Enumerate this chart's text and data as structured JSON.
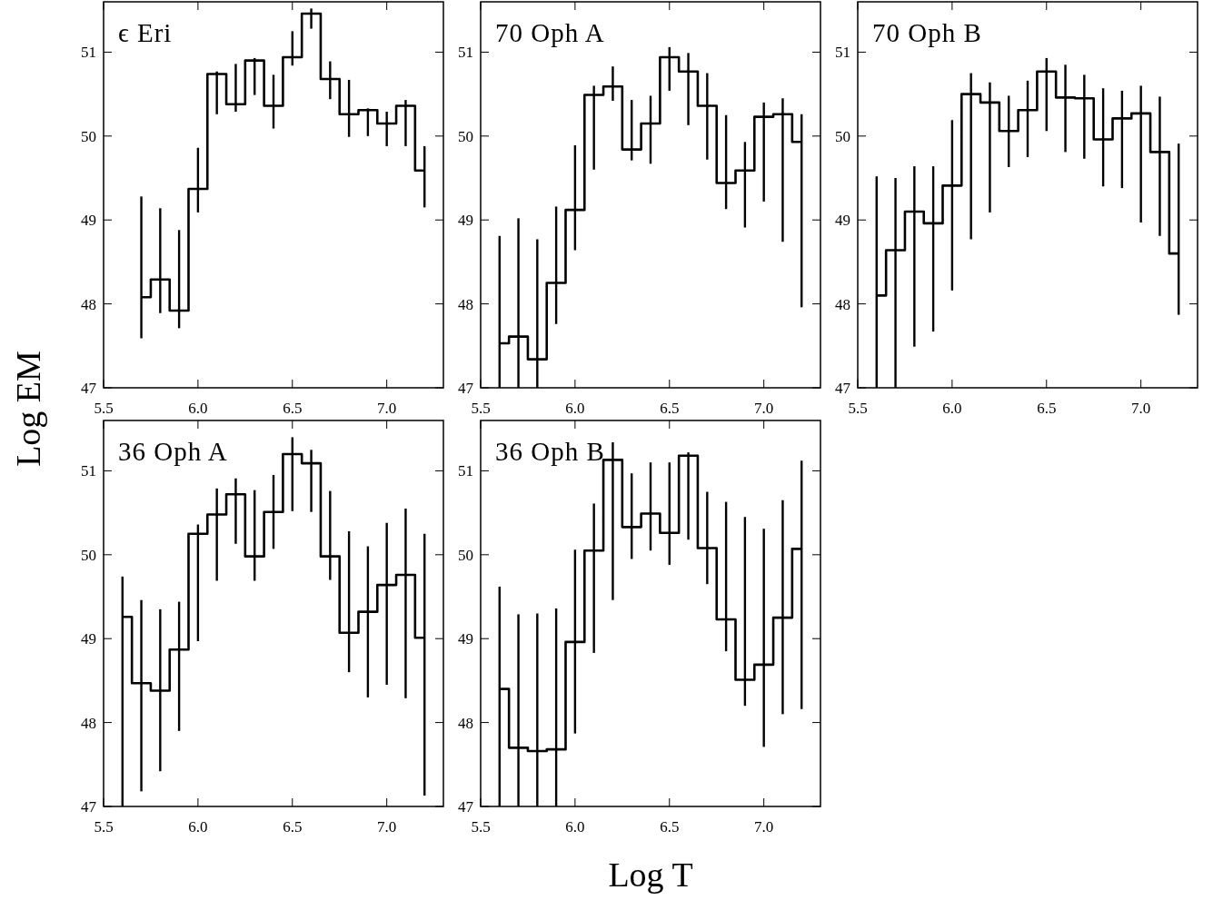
{
  "chart_data": [
    {
      "type": "step",
      "title": "ϵ Eri",
      "ylabel": "Log EM",
      "x": [
        5.7,
        5.8,
        5.9,
        6.0,
        6.1,
        6.2,
        6.3,
        6.4,
        6.5,
        6.6,
        6.7,
        6.8,
        6.9,
        7.0,
        7.1,
        7.2
      ],
      "series": [
        {
          "color": "#000000",
          "values": [
            48.08,
            48.29,
            47.92,
            49.37,
            50.74,
            50.38,
            50.9,
            50.36,
            50.94,
            51.46,
            50.68,
            50.26,
            50.31,
            50.15,
            50.36,
            49.59
          ],
          "errors": [
            [
              47.59,
              49.28
            ],
            [
              47.89,
              49.14
            ],
            [
              47.71,
              48.88
            ],
            [
              49.09,
              49.86
            ],
            [
              50.26,
              50.77
            ],
            [
              50.29,
              50.86
            ],
            [
              50.49,
              50.93
            ],
            [
              50.09,
              50.73
            ],
            [
              50.84,
              51.25
            ],
            [
              51.28,
              51.52
            ],
            [
              50.44,
              50.89
            ],
            [
              49.99,
              50.67
            ],
            [
              50.0,
              50.33
            ],
            [
              49.88,
              50.29
            ],
            [
              49.88,
              50.43
            ],
            [
              49.15,
              49.88
            ]
          ]
        }
      ],
      "xlim": [
        5.5,
        7.3
      ],
      "xticks": [
        {
          "value": 5.5,
          "label": "5.5"
        },
        {
          "value": 6.0,
          "label": "6.0"
        },
        {
          "value": 6.5,
          "label": "6.5"
        },
        {
          "value": 7.0,
          "label": "7.0"
        }
      ],
      "ylim": [
        47,
        51.6
      ],
      "yticks": [
        47,
        48,
        49,
        50,
        51
      ],
      "grid": false,
      "line_style": "solid",
      "marker": "none"
    },
    {
      "type": "step",
      "title": "70 Oph A",
      "x": [
        5.6,
        5.7,
        5.8,
        5.9,
        6.0,
        6.1,
        6.2,
        6.3,
        6.4,
        6.5,
        6.6,
        6.7,
        6.8,
        6.9,
        7.0,
        7.1,
        7.2
      ],
      "series": [
        {
          "color": "#000000",
          "values": [
            47.53,
            47.61,
            47.34,
            48.25,
            49.12,
            50.49,
            50.59,
            49.84,
            50.15,
            50.94,
            50.77,
            50.36,
            49.44,
            49.59,
            50.23,
            50.26,
            49.93
          ],
          "errors": [
            [
              47,
              48.81
            ],
            [
              47,
              49.02
            ],
            [
              47,
              48.77
            ],
            [
              47.76,
              49.16
            ],
            [
              48.64,
              49.89
            ],
            [
              49.6,
              50.6
            ],
            [
              50.42,
              50.83
            ],
            [
              49.71,
              50.43
            ],
            [
              49.67,
              50.48
            ],
            [
              50.54,
              51.06
            ],
            [
              50.13,
              50.99
            ],
            [
              49.72,
              50.75
            ],
            [
              49.13,
              50.25
            ],
            [
              48.91,
              49.93
            ],
            [
              49.22,
              50.4
            ],
            [
              48.74,
              50.45
            ],
            [
              47.96,
              50.26
            ]
          ]
        }
      ],
      "xlim": [
        5.5,
        7.3
      ],
      "xticks": [
        {
          "value": 5.5,
          "label": "5.5"
        },
        {
          "value": 6.0,
          "label": "6.0"
        },
        {
          "value": 6.5,
          "label": "6.5"
        },
        {
          "value": 7.0,
          "label": "7.0"
        }
      ],
      "ylim": [
        47,
        51.6
      ],
      "yticks": [
        47,
        48,
        49,
        50,
        51
      ],
      "grid": false,
      "line_style": "solid",
      "marker": "none"
    },
    {
      "type": "step",
      "title": "70 Oph B",
      "x": [
        5.6,
        5.7,
        5.8,
        5.9,
        6.0,
        6.1,
        6.2,
        6.3,
        6.4,
        6.5,
        6.6,
        6.7,
        6.8,
        6.9,
        7.0,
        7.1,
        7.2
      ],
      "series": [
        {
          "color": "#000000",
          "values": [
            48.1,
            48.64,
            49.1,
            48.96,
            49.41,
            50.5,
            50.4,
            50.06,
            50.31,
            50.77,
            50.46,
            50.45,
            49.96,
            50.21,
            50.27,
            49.81,
            48.6
          ],
          "errors": [
            [
              47,
              49.52
            ],
            [
              47,
              49.5
            ],
            [
              47.49,
              49.64
            ],
            [
              47.67,
              49.64
            ],
            [
              48.16,
              50.19
            ],
            [
              48.77,
              50.75
            ],
            [
              49.09,
              50.64
            ],
            [
              49.63,
              50.48
            ],
            [
              49.75,
              50.66
            ],
            [
              50.06,
              50.93
            ],
            [
              49.81,
              50.85
            ],
            [
              49.73,
              50.73
            ],
            [
              49.4,
              50.57
            ],
            [
              49.38,
              50.54
            ],
            [
              48.97,
              50.6
            ],
            [
              48.81,
              50.47
            ],
            [
              47.87,
              49.91
            ]
          ]
        }
      ],
      "xlim": [
        5.5,
        7.3
      ],
      "xticks": [
        {
          "value": 5.5,
          "label": "5.5"
        },
        {
          "value": 6.0,
          "label": "6.0"
        },
        {
          "value": 6.5,
          "label": "6.5"
        },
        {
          "value": 7.0,
          "label": "7.0"
        }
      ],
      "ylim": [
        47,
        51.6
      ],
      "yticks": [
        47,
        48,
        49,
        50,
        51
      ],
      "grid": false,
      "line_style": "solid",
      "marker": "none"
    },
    {
      "type": "step",
      "title": "36 Oph A",
      "xlabel": "Log T",
      "x": [
        5.6,
        5.7,
        5.8,
        5.9,
        6.0,
        6.1,
        6.2,
        6.3,
        6.4,
        6.5,
        6.6,
        6.7,
        6.8,
        6.9,
        7.0,
        7.1,
        7.2
      ],
      "series": [
        {
          "color": "#000000",
          "values": [
            49.26,
            48.47,
            48.38,
            48.87,
            50.25,
            50.48,
            50.72,
            49.98,
            50.51,
            51.2,
            51.09,
            49.98,
            49.07,
            49.32,
            49.64,
            49.76,
            49.01
          ],
          "errors": [
            [
              47,
              49.74
            ],
            [
              47.18,
              49.46
            ],
            [
              47.42,
              49.35
            ],
            [
              47.9,
              49.44
            ],
            [
              48.97,
              50.36
            ],
            [
              49.69,
              50.79
            ],
            [
              50.13,
              50.91
            ],
            [
              49.69,
              50.77
            ],
            [
              50.07,
              50.95
            ],
            [
              50.52,
              51.4
            ],
            [
              50.51,
              51.25
            ],
            [
              49.7,
              50.76
            ],
            [
              48.6,
              50.28
            ],
            [
              48.3,
              50.1
            ],
            [
              48.45,
              50.38
            ],
            [
              48.29,
              50.55
            ],
            [
              47.13,
              50.25
            ]
          ]
        }
      ],
      "xlim": [
        5.5,
        7.3
      ],
      "xticks": [
        {
          "value": 5.5,
          "label": "5.5"
        },
        {
          "value": 6.0,
          "label": "6.0"
        },
        {
          "value": 6.5,
          "label": "6.5"
        },
        {
          "value": 7.0,
          "label": "7.0"
        }
      ],
      "ylim": [
        47,
        51.6
      ],
      "yticks": [
        47,
        48,
        49,
        50,
        51
      ],
      "grid": false,
      "line_style": "solid",
      "marker": "none"
    },
    {
      "type": "step",
      "title": "36 Oph B",
      "x": [
        5.6,
        5.7,
        5.8,
        5.9,
        6.0,
        6.1,
        6.2,
        6.3,
        6.4,
        6.5,
        6.6,
        6.7,
        6.8,
        6.9,
        7.0,
        7.1,
        7.2
      ],
      "series": [
        {
          "color": "#000000",
          "values": [
            48.4,
            47.7,
            47.66,
            47.68,
            48.96,
            50.05,
            51.13,
            50.33,
            50.49,
            50.26,
            51.18,
            50.08,
            49.23,
            48.51,
            48.69,
            49.25,
            50.07
          ],
          "errors": [
            [
              47,
              49.62
            ],
            [
              47,
              49.29
            ],
            [
              47,
              49.3
            ],
            [
              47,
              49.36
            ],
            [
              47.87,
              50.06
            ],
            [
              48.83,
              50.61
            ],
            [
              49.46,
              51.34
            ],
            [
              49.95,
              50.97
            ],
            [
              50.05,
              51.1
            ],
            [
              49.88,
              51.1
            ],
            [
              50.18,
              51.22
            ],
            [
              49.65,
              50.75
            ],
            [
              48.85,
              50.63
            ],
            [
              48.2,
              50.45
            ],
            [
              47.71,
              50.31
            ],
            [
              48.1,
              50.65
            ],
            [
              48.16,
              51.12
            ]
          ]
        }
      ],
      "xlim": [
        5.5,
        7.3
      ],
      "xticks": [
        {
          "value": 5.5,
          "label": "5.5"
        },
        {
          "value": 6.0,
          "label": "6.0"
        },
        {
          "value": 6.5,
          "label": "6.5"
        },
        {
          "value": 7.0,
          "label": "7.0"
        }
      ],
      "ylim": [
        47,
        51.6
      ],
      "yticks": [
        47,
        48,
        49,
        50,
        51
      ],
      "grid": false,
      "line_style": "solid",
      "marker": "none"
    }
  ]
}
